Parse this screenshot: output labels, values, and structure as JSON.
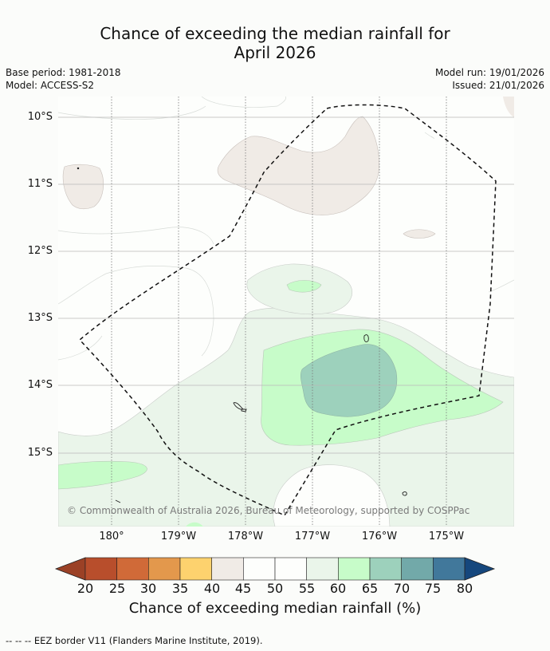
{
  "title": {
    "line1": "Chance of exceeding the median rainfall for",
    "line2": "April 2026"
  },
  "meta": {
    "base_period": "Base period: 1981-2018",
    "model": "Model: ACCESS-S2",
    "model_run": "Model run: 19/01/2026",
    "issued": "Issued: 21/01/2026"
  },
  "map": {
    "copyright": "© Commonwealth of Australia 2026, Bureau of Meteorology, supported by COSPPac",
    "lat_labels": [
      "10°S",
      "11°S",
      "12°S",
      "13°S",
      "14°S",
      "15°S"
    ],
    "lon_labels": [
      "180°",
      "179°W",
      "178°W",
      "177°W",
      "176°W",
      "175°W"
    ],
    "eez_border": "dashed line",
    "category_colors": {
      "45_50": "#f0ebe6",
      "50_55": "#fdfefc",
      "55_60": "#eaf5ea",
      "60_65": "#c7fcc9",
      "65_70": "#9dd1bc"
    }
  },
  "colorbar": {
    "ticks": [
      "20",
      "25",
      "30",
      "35",
      "40",
      "45",
      "50",
      "55",
      "60",
      "65",
      "70",
      "75",
      "80"
    ],
    "colors": [
      "#9b4126",
      "#b84e2c",
      "#d06a38",
      "#e3984c",
      "#fdd26e",
      "#f0ebe6",
      "#fdfefc",
      "#fdfefc",
      "#eaf5ea",
      "#c7fcc9",
      "#9dd1bc",
      "#72a9a9",
      "#41789b",
      "#15477d"
    ],
    "label": "Chance of exceeding median rainfall (%)"
  },
  "footnote": "--  --  -- EEZ border V11 (Flanders Marine Institute, 2019)."
}
